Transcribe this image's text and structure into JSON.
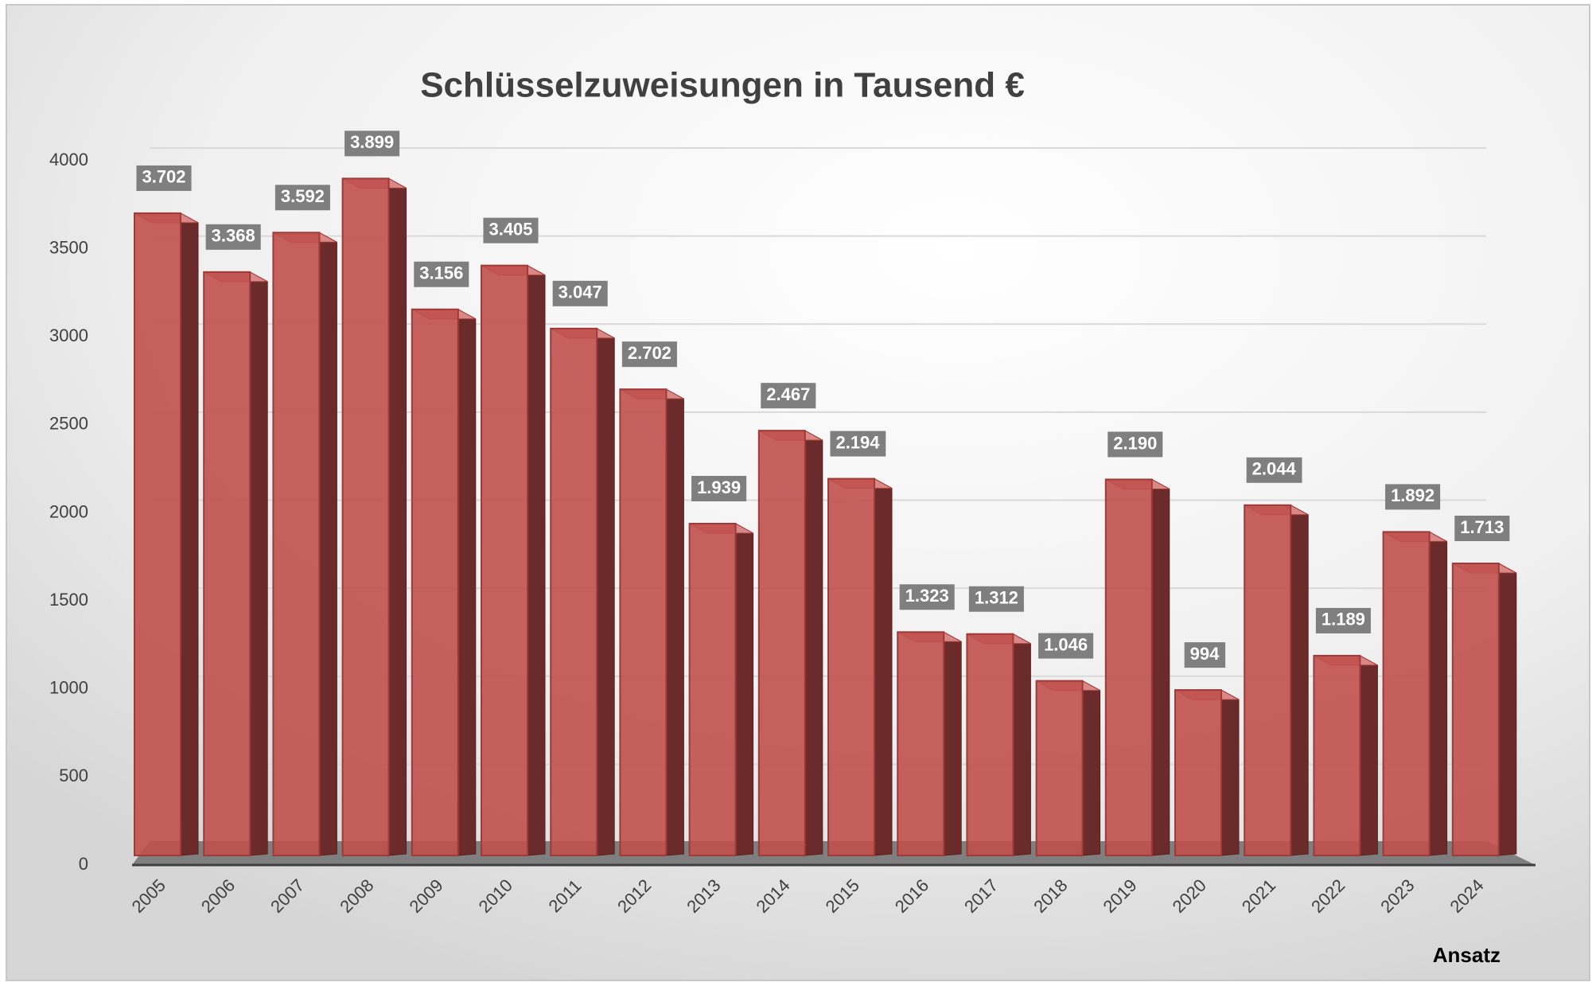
{
  "chart_data": {
    "type": "bar",
    "title": "Schlüsselzuweisungen in Tausend €",
    "categories": [
      "2005",
      "2006",
      "2007",
      "2008",
      "2009",
      "2010",
      "2011",
      "2012",
      "2013",
      "2014",
      "2015",
      "2016",
      "2017",
      "2018",
      "2019",
      "2020",
      "2021",
      "2022",
      "2023",
      "2024"
    ],
    "values": [
      3702,
      3368,
      3592,
      3899,
      3156,
      3405,
      3047,
      2702,
      1939,
      2467,
      2194,
      1323,
      1312,
      1046,
      2190,
      994,
      2044,
      1189,
      1892,
      1713
    ],
    "value_labels": [
      "3.702",
      "3.368",
      "3.592",
      "3.899",
      "3.156",
      "3.405",
      "3.047",
      "2.702",
      "1.939",
      "2.467",
      "2.194",
      "1.323",
      "1.312",
      "1.046",
      "2.190",
      "994",
      "2.044",
      "1.189",
      "1.892",
      "1.713"
    ],
    "color": "#c0504d",
    "ylim": [
      0,
      4000
    ],
    "yticks": [
      0,
      500,
      1000,
      1500,
      2000,
      2500,
      3000,
      3500,
      4000
    ],
    "grid": true,
    "annotation": "Ansatz"
  }
}
